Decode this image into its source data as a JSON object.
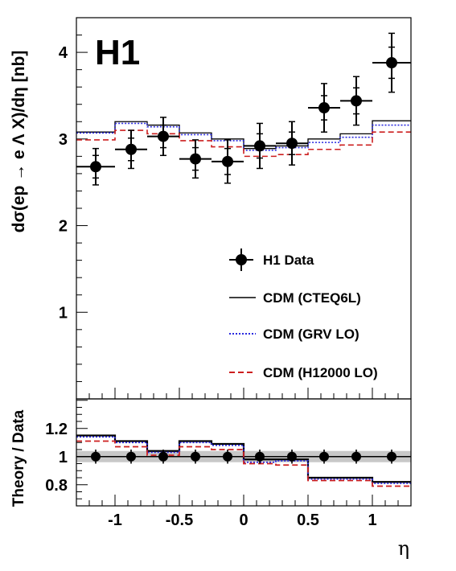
{
  "chart_data": [
    {
      "type": "scatter",
      "panel": "main",
      "experiment_label": "H1",
      "ylabel": "dσ(ep → e Λ X)/dη [nb]",
      "xlim": [
        -1.3,
        1.3
      ],
      "ylim": [
        0,
        4.4
      ],
      "y_ticks": [
        1,
        2,
        3,
        4
      ],
      "bin_edges": [
        -1.3,
        -1.0,
        -0.75,
        -0.5,
        -0.25,
        0.0,
        0.25,
        0.5,
        0.75,
        1.0,
        1.3
      ],
      "x": [
        -1.15,
        -0.875,
        -0.625,
        -0.375,
        -0.125,
        0.125,
        0.375,
        0.625,
        0.875,
        1.15
      ],
      "series": [
        {
          "name": "H1 Data",
          "style": "marker",
          "color": "#000000",
          "values": [
            2.68,
            2.88,
            3.03,
            2.77,
            2.74,
            2.92,
            2.95,
            3.36,
            3.44,
            3.88
          ],
          "stat_err": [
            0.13,
            0.13,
            0.13,
            0.13,
            0.15,
            0.14,
            0.13,
            0.14,
            0.15,
            0.18
          ],
          "tot_err": [
            0.21,
            0.22,
            0.22,
            0.22,
            0.25,
            0.26,
            0.25,
            0.28,
            0.28,
            0.34
          ]
        },
        {
          "name": "CDM (CTEQ6L)",
          "style": "solid",
          "color": "#000000",
          "values": [
            3.08,
            3.2,
            3.16,
            3.07,
            3.0,
            2.89,
            2.92,
            3.0,
            3.06,
            3.21
          ]
        },
        {
          "name": "CDM (GRV LO)",
          "style": "dotted",
          "color": "#2a2ae0",
          "values": [
            3.07,
            3.18,
            3.14,
            3.05,
            2.98,
            2.87,
            2.9,
            2.96,
            3.02,
            3.16
          ]
        },
        {
          "name": "CDM (H12000 LO)",
          "style": "dashed",
          "color": "#cc1f1f",
          "values": [
            2.99,
            3.1,
            3.06,
            2.98,
            2.91,
            2.8,
            2.82,
            2.88,
            2.93,
            3.08
          ]
        }
      ]
    },
    {
      "type": "scatter",
      "panel": "ratio",
      "ylabel": "Theory / Data",
      "xlabel": "η",
      "xlim": [
        -1.3,
        1.3
      ],
      "ylim": [
        0.65,
        1.41
      ],
      "y_ticks": [
        "0.8",
        "1",
        "1.2"
      ],
      "x_ticks": [
        "-1",
        "-0.5",
        "0",
        "0.5",
        "1"
      ],
      "x_tick_values": [
        -1,
        -0.5,
        0,
        0.5,
        1
      ],
      "band": [
        0.96,
        1.04
      ],
      "bin_edges": [
        -1.3,
        -1.0,
        -0.75,
        -0.5,
        -0.25,
        0.0,
        0.25,
        0.5,
        0.75,
        1.0,
        1.3
      ],
      "x": [
        -1.15,
        -0.875,
        -0.625,
        -0.375,
        -0.125,
        0.125,
        0.375,
        0.625,
        0.875,
        1.15
      ],
      "series": [
        {
          "name": "H1 Data",
          "style": "marker",
          "color": "#000000",
          "values": [
            1,
            1,
            1,
            1,
            1,
            1,
            1,
            1,
            1,
            1
          ],
          "err": [
            0.05,
            0.05,
            0.05,
            0.05,
            0.05,
            0.05,
            0.05,
            0.05,
            0.05,
            0.05
          ]
        },
        {
          "name": "CDM (CTEQ6L)",
          "style": "solid",
          "color": "#000000",
          "values": [
            1.15,
            1.11,
            1.04,
            1.11,
            1.09,
            0.98,
            0.98,
            0.85,
            0.85,
            0.82
          ]
        },
        {
          "name": "CDM (GRV LO)",
          "style": "dotted",
          "color": "#2a2ae0",
          "values": [
            1.14,
            1.1,
            1.03,
            1.1,
            1.08,
            0.96,
            0.97,
            0.84,
            0.84,
            0.81
          ]
        },
        {
          "name": "CDM (H12000 LO)",
          "style": "dashed",
          "color": "#cc1f1f",
          "values": [
            1.11,
            1.07,
            1.01,
            1.07,
            1.05,
            0.95,
            0.94,
            0.83,
            0.83,
            0.79
          ]
        }
      ]
    }
  ]
}
